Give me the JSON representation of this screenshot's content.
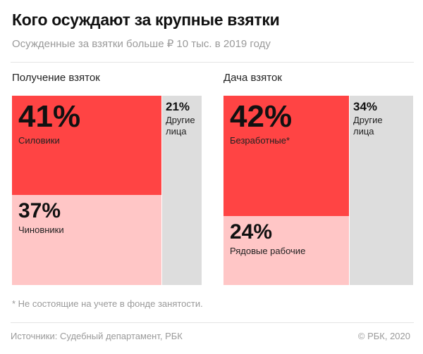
{
  "header": {
    "title": "Кого осуждают за крупные взятки",
    "subtitle": "Осужденные за взятки больше ₽ 10 тыс. в 2019 году"
  },
  "chart_data": [
    {
      "type": "treemap",
      "title": "Получение взяток",
      "segments": [
        {
          "label": "Силовики",
          "value": 41,
          "display": "41%",
          "color": "#ff4444"
        },
        {
          "label": "Чиновники",
          "value": 37,
          "display": "37%",
          "color": "#ffc6c6"
        },
        {
          "label": "Другие лица",
          "value": 21,
          "display": "21%",
          "color": "#dddddd"
        }
      ]
    },
    {
      "type": "treemap",
      "title": "Дача взяток",
      "segments": [
        {
          "label": "Безработные*",
          "value": 42,
          "display": "42%",
          "color": "#ff4444"
        },
        {
          "label": "Рядовые рабочие",
          "value": 24,
          "display": "24%",
          "color": "#ffc6c6"
        },
        {
          "label": "Другие лица",
          "value": 34,
          "display": "34%",
          "color": "#dddddd"
        }
      ]
    }
  ],
  "footnote": "* Не состоящие на учете в фонде занятости.",
  "footer": {
    "source": "Источники: Судебный департамент, РБК",
    "copyright": "© РБК, 2020"
  }
}
